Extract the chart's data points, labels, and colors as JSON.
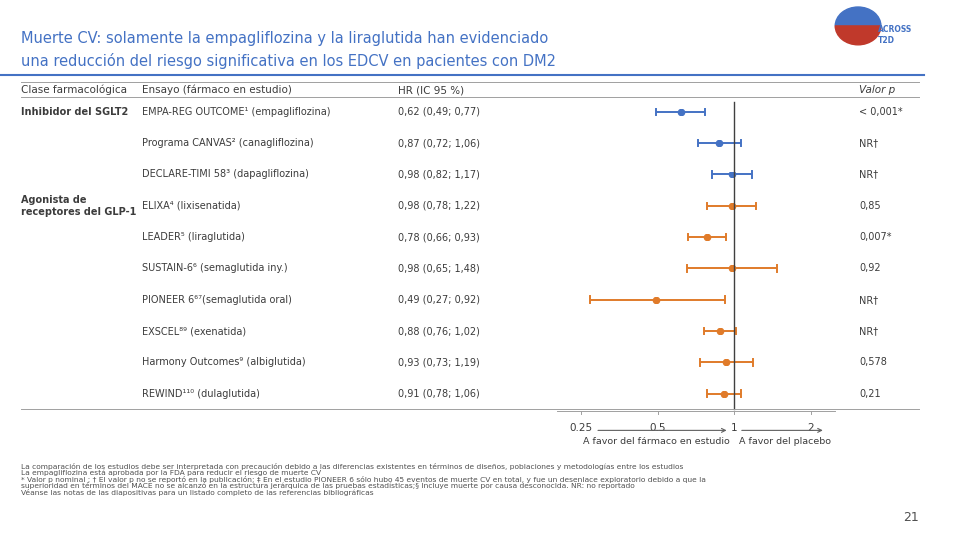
{
  "title_line1": "Muerte CV: solamente la empagliflozina y la liraglutida han evidenciado",
  "title_line2": "una reducción del riesgo significativa en los EDCV en pacientes con DM2",
  "header_col1": "Clase farmacológica",
  "header_col2": "Ensayo (fármaco en estudio)",
  "header_col3": "HR (IC 95 %)",
  "header_col4": "Valor p",
  "rows": [
    {
      "class": "Inhibidor del SGLT2",
      "trial": "EMPA-REG OUTCOME¹ (empagliflozina)",
      "hr_text": "0,62 (0,49; 0,77)",
      "hr": 0.62,
      "ci_low": 0.49,
      "ci_high": 0.77,
      "p_value": "< 0,001*",
      "color": "#4472c4",
      "show_class": true,
      "class_bold": true
    },
    {
      "class": "",
      "trial": "Programa CANVAS² (canagliflozina)",
      "hr_text": "0,87 (0,72; 1,06)",
      "hr": 0.87,
      "ci_low": 0.72,
      "ci_high": 1.06,
      "p_value": "NR†",
      "color": "#4472c4",
      "show_class": false,
      "class_bold": false
    },
    {
      "class": "",
      "trial": "DECLARE-TIMI 58³ (dapagliflozina)",
      "hr_text": "0,98 (0,82; 1,17)",
      "hr": 0.98,
      "ci_low": 0.82,
      "ci_high": 1.17,
      "p_value": "NR†",
      "color": "#4472c4",
      "show_class": false,
      "class_bold": false
    },
    {
      "class": "Agonista de\nreceptores del GLP-1",
      "trial": "ELIXA⁴ (lixisenatida)",
      "hr_text": "0,98 (0,78; 1,22)",
      "hr": 0.98,
      "ci_low": 0.78,
      "ci_high": 1.22,
      "p_value": "0,85",
      "color": "#e07b2a",
      "show_class": true,
      "class_bold": true
    },
    {
      "class": "",
      "trial": "LEADER⁵ (liraglutida)",
      "hr_text": "0,78 (0,66; 0,93)",
      "hr": 0.78,
      "ci_low": 0.66,
      "ci_high": 0.93,
      "p_value": "0,007*",
      "color": "#e07b2a",
      "show_class": false,
      "class_bold": false
    },
    {
      "class": "",
      "trial": "SUSTAIN-6⁶ (semaglutida iny.)",
      "hr_text": "0,98 (0,65; 1,48)",
      "hr": 0.98,
      "ci_low": 0.65,
      "ci_high": 1.48,
      "p_value": "0,92",
      "color": "#e07b2a",
      "show_class": false,
      "class_bold": false
    },
    {
      "class": "",
      "trial": "PIONEER 6⁶⁷(semaglutida oral)",
      "hr_text": "0,49 (0,27; 0,92)",
      "hr": 0.49,
      "ci_low": 0.27,
      "ci_high": 0.92,
      "p_value": "NR†",
      "color": "#e07b2a",
      "show_class": false,
      "class_bold": false
    },
    {
      "class": "",
      "trial": "EXSCEL⁸⁹ (exenatida)",
      "hr_text": "0,88 (0,76; 1,02)",
      "hr": 0.88,
      "ci_low": 0.76,
      "ci_high": 1.02,
      "p_value": "NR†",
      "color": "#e07b2a",
      "show_class": false,
      "class_bold": false
    },
    {
      "class": "",
      "trial": "Harmony Outcomes⁹ (albiglutida)",
      "hr_text": "0,93 (0,73; 1,19)",
      "hr": 0.93,
      "ci_low": 0.73,
      "ci_high": 1.19,
      "p_value": "0,578",
      "color": "#e07b2a",
      "show_class": false,
      "class_bold": false
    },
    {
      "class": "",
      "trial": "REWIND¹¹⁰ (dulaglutida)",
      "hr_text": "0,91 (0,78; 1,06)",
      "hr": 0.91,
      "ci_low": 0.78,
      "ci_high": 1.06,
      "p_value": "0,21",
      "color": "#e07b2a",
      "show_class": false,
      "class_bold": false
    }
  ],
  "xticks": [
    0.25,
    0.5,
    1.0,
    2.0
  ],
  "xtick_labels": [
    "0.25",
    "0.5",
    "1",
    "2"
  ],
  "xlabel_left": "A favor del fármaco en estudio",
  "xlabel_right": "A favor del placebo",
  "footnotes": [
    "La comparación de los estudios debe ser interpretada con precaución debido a las diferencias existentes en términos de diseños, poblaciones y metodologías entre los estudios",
    "La empagliflozina está aprobada por la FDA para reducir el riesgo de muerte CV",
    "* Valor p nominal ; † El valor p no se reportó en la publicación; ‡ En el estudio PIONEER 6 sólo hubo 45 eventos de muerte CV en total, y fue un desenlace exploratorio debido a que la",
    "superioridad en términos del MACE no se alcanzó en la estructura jerárquica de las pruebas estadísticas;§ Incluye muerte por causa desconocida. NR: no reportado",
    "Véanse las notas de las diapositivas para un listado completo de las referencias bibliográficas"
  ],
  "page_num": "21",
  "bg_color": "#ffffff",
  "title_color": "#4472c4",
  "text_color": "#3c3c3c",
  "header_text_color": "#3c3c3c",
  "sidebar_blue": "#4472c4",
  "sidebar_red": "#c0392b",
  "grid_color": "#a0a0a0",
  "fp_log_min": -1.609,
  "fp_log_max": 0.916
}
